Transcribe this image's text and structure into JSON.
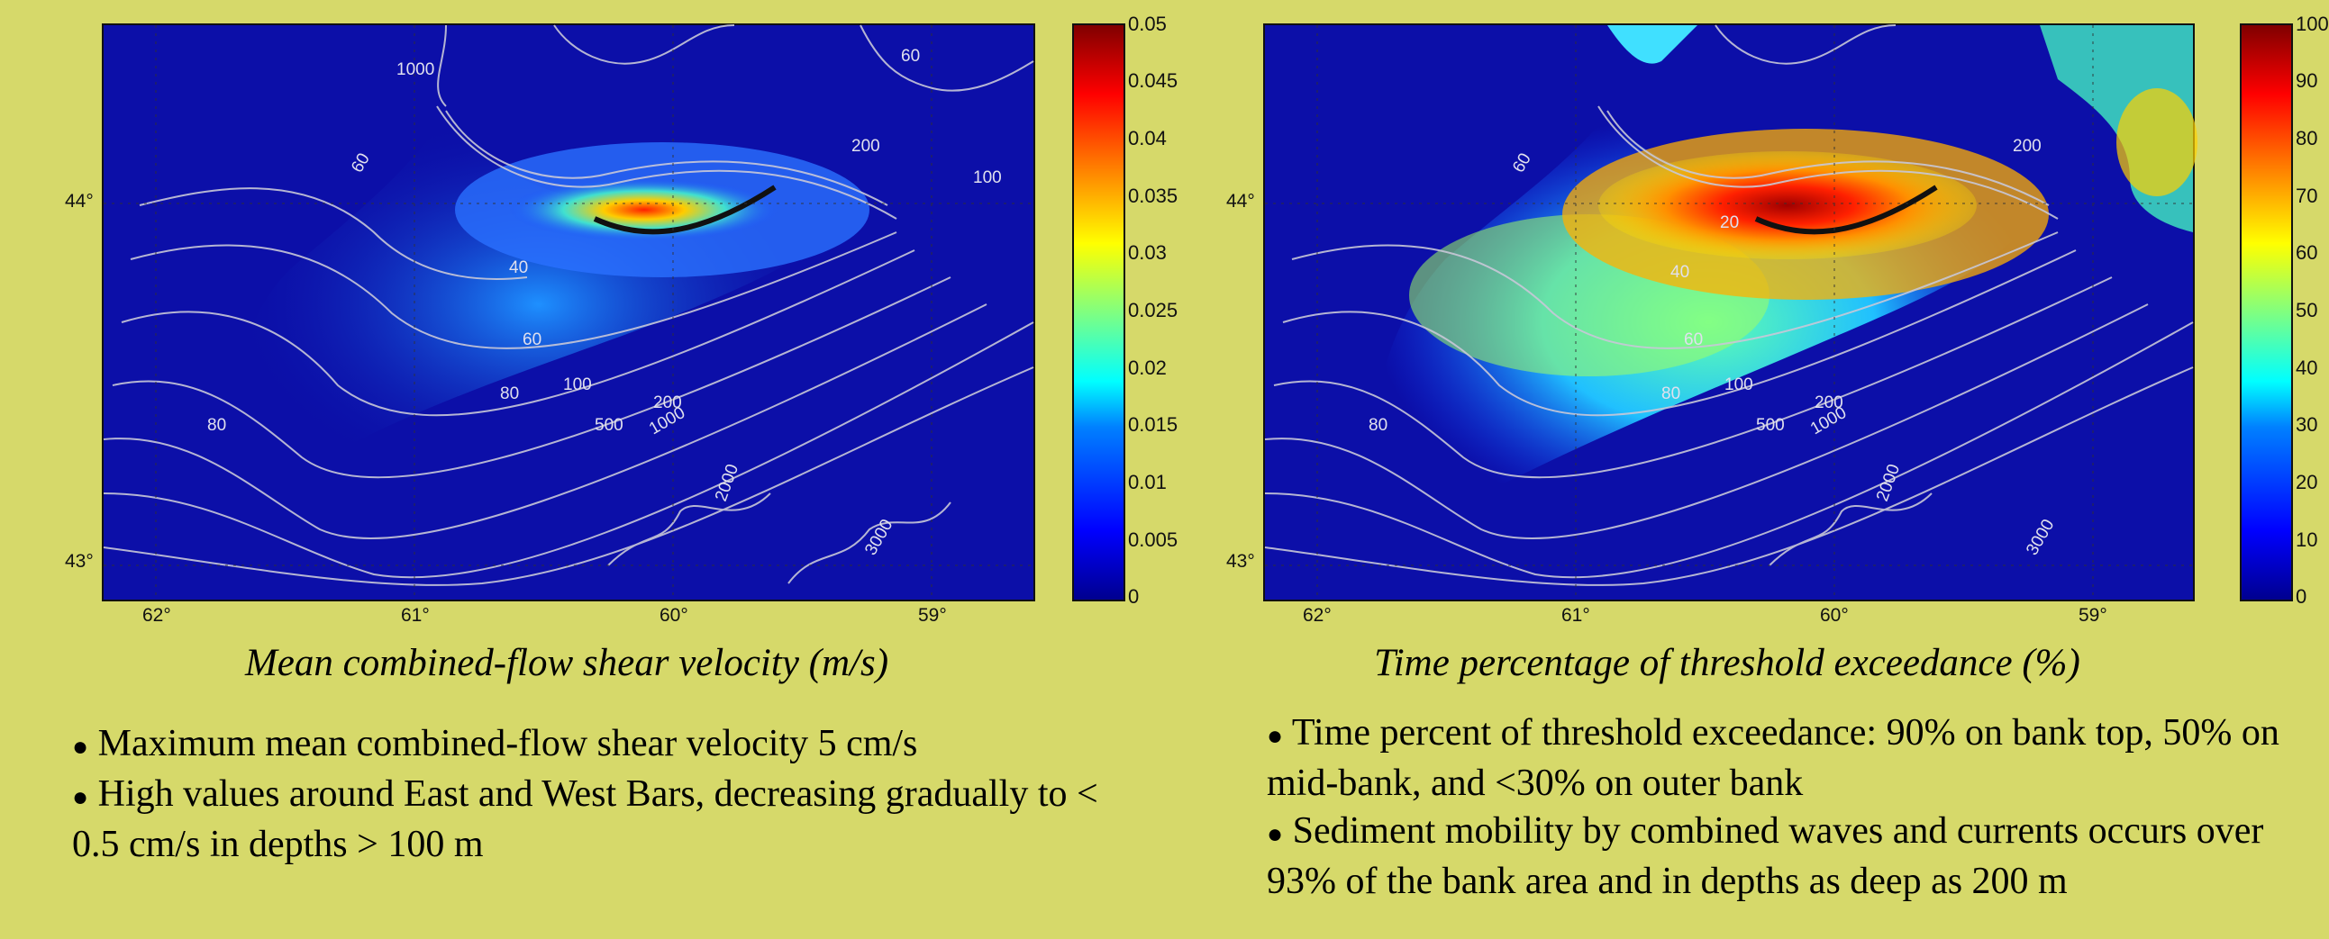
{
  "left_panel": {
    "caption": "Mean combined-flow shear velocity (m/s)",
    "colorbar_ticks": [
      "0.05",
      "0.045",
      "0.04",
      "0.035",
      "0.03",
      "0.025",
      "0.02",
      "0.015",
      "0.01",
      "0.005",
      "0"
    ],
    "lat_labels": [
      "44°",
      "43°"
    ],
    "lon_labels": [
      "62°",
      "61°",
      "60°",
      "59°"
    ],
    "contour_labels": [
      "1000",
      "60",
      "40",
      "60",
      "80",
      "100",
      "200",
      "500",
      "1000",
      "2000",
      "3000",
      "80",
      "200",
      "60",
      "100"
    ],
    "bullets": [
      "Maximum mean combined-flow shear velocity 5 cm/s",
      "High values around East and West Bars, decreasing gradually to < 0.5 cm/s in depths > 100 m"
    ]
  },
  "right_panel": {
    "caption": "Time percentage of threshold exceedance (%)",
    "colorbar_ticks": [
      "100",
      "90",
      "80",
      "70",
      "60",
      "50",
      "40",
      "30",
      "20",
      "10",
      "0"
    ],
    "lat_labels": [
      "44°",
      "43°"
    ],
    "lon_labels": [
      "62°",
      "61°",
      "60°",
      "59°"
    ],
    "contour_labels": [
      "60",
      "40",
      "20",
      "60",
      "80",
      "100",
      "200",
      "500",
      "1000",
      "2000",
      "3000",
      "80",
      "200"
    ],
    "bullets": [
      "Time percent of threshold exceedance: 90% on bank top, 50% on mid-bank, and <30% on outer bank",
      "Sediment mobility by combined waves and currents occurs over 93% of the bank area and in depths as deep as 200 m"
    ]
  },
  "colors": {
    "background": "#d6d96a",
    "map_ocean": "#0c0fa8",
    "contour": "#c8c8d8"
  }
}
